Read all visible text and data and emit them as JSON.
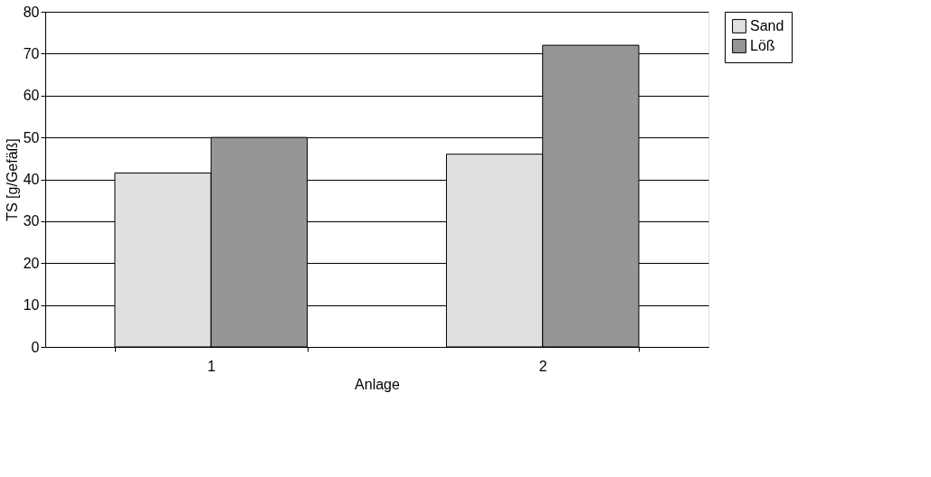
{
  "chart_data": {
    "type": "bar",
    "xlabel": "Anlage",
    "ylabel": "TS [g/Gefäß]",
    "categories": [
      "1",
      "2"
    ],
    "series": [
      {
        "name": "Sand",
        "color": "#e0e0e0",
        "values": [
          41.5,
          46
        ]
      },
      {
        "name": "Löß",
        "color": "#969696",
        "values": [
          50,
          72
        ]
      }
    ],
    "ylim": [
      0,
      80
    ],
    "yticks": [
      0,
      10,
      20,
      30,
      40,
      50,
      60,
      70,
      80
    ],
    "grid": "y",
    "legend": "right"
  }
}
